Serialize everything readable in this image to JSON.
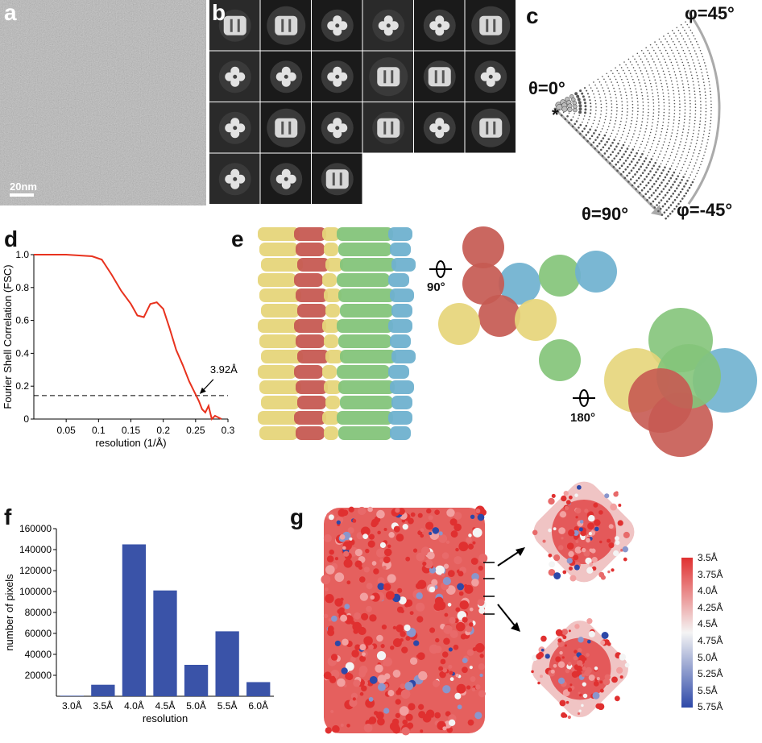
{
  "panels": {
    "a": {
      "letter": "a",
      "scale_bar": "20nm"
    },
    "b": {
      "letter": "b",
      "class_count": 21
    },
    "c": {
      "letter": "c",
      "labels": {
        "theta0": "θ=0°",
        "theta90": "θ=90°",
        "phi45": "φ=45°",
        "phim45": "φ=-45°"
      },
      "star": "*"
    },
    "d": {
      "letter": "d",
      "annotation": "3.92Å"
    },
    "e": {
      "letter": "e",
      "rot1": "90°",
      "rot2": "180°"
    },
    "f": {
      "letter": "f"
    },
    "g": {
      "letter": "g",
      "legend": [
        "3.5Å",
        "3.75Å",
        "4.0Å",
        "4.25Å",
        "4.5Å",
        "4.75Å",
        "5.0Å",
        "5.25Å",
        "5.5Å",
        "5.75Å"
      ],
      "legend_colors": [
        "#e03030",
        "#f4f4f4",
        "#2d48a8"
      ]
    }
  },
  "chart_data": [
    {
      "type": "line",
      "panel": "d",
      "xlabel": "resolution (1/Å)",
      "ylabel": "Fourier Shell Correlation (FSC)",
      "xlim": [
        0,
        0.3
      ],
      "ylim": [
        0,
        1.0
      ],
      "xticks": [
        "0.05",
        "0.1",
        "0.15",
        "0.2",
        "0.25",
        "0.3"
      ],
      "yticks": [
        "0",
        "0.2",
        "0.4",
        "0.6",
        "0.8",
        "1.0"
      ],
      "x": [
        0,
        0.05,
        0.09,
        0.105,
        0.12,
        0.135,
        0.15,
        0.16,
        0.17,
        0.18,
        0.19,
        0.2,
        0.21,
        0.22,
        0.23,
        0.24,
        0.25,
        0.255,
        0.26,
        0.265,
        0.27,
        0.275,
        0.28,
        0.29
      ],
      "y": [
        1.0,
        1.0,
        0.99,
        0.97,
        0.88,
        0.78,
        0.7,
        0.63,
        0.62,
        0.7,
        0.71,
        0.67,
        0.55,
        0.42,
        0.33,
        0.23,
        0.15,
        0.11,
        0.06,
        0.04,
        0.08,
        0.0,
        0.02,
        0.0
      ],
      "threshold": 0.143,
      "annotation": {
        "text": "3.92Å",
        "x": 0.255,
        "y": 0.143
      }
    },
    {
      "type": "bar",
      "panel": "f",
      "xlabel": "resolution",
      "ylabel": "number of pixels",
      "ylim": [
        0,
        160000
      ],
      "yticks": [
        "20000",
        "40000",
        "60000",
        "80000",
        "100000",
        "120000",
        "140000",
        "160000"
      ],
      "categories": [
        "3.0Å",
        "3.5Å",
        "4.0Å",
        "4.5Å",
        "5.0Å",
        "5.5Å",
        "6.0Å"
      ],
      "values": [
        500,
        11000,
        145000,
        101000,
        30000,
        62000,
        13500
      ],
      "color": "#3a53a8"
    }
  ]
}
